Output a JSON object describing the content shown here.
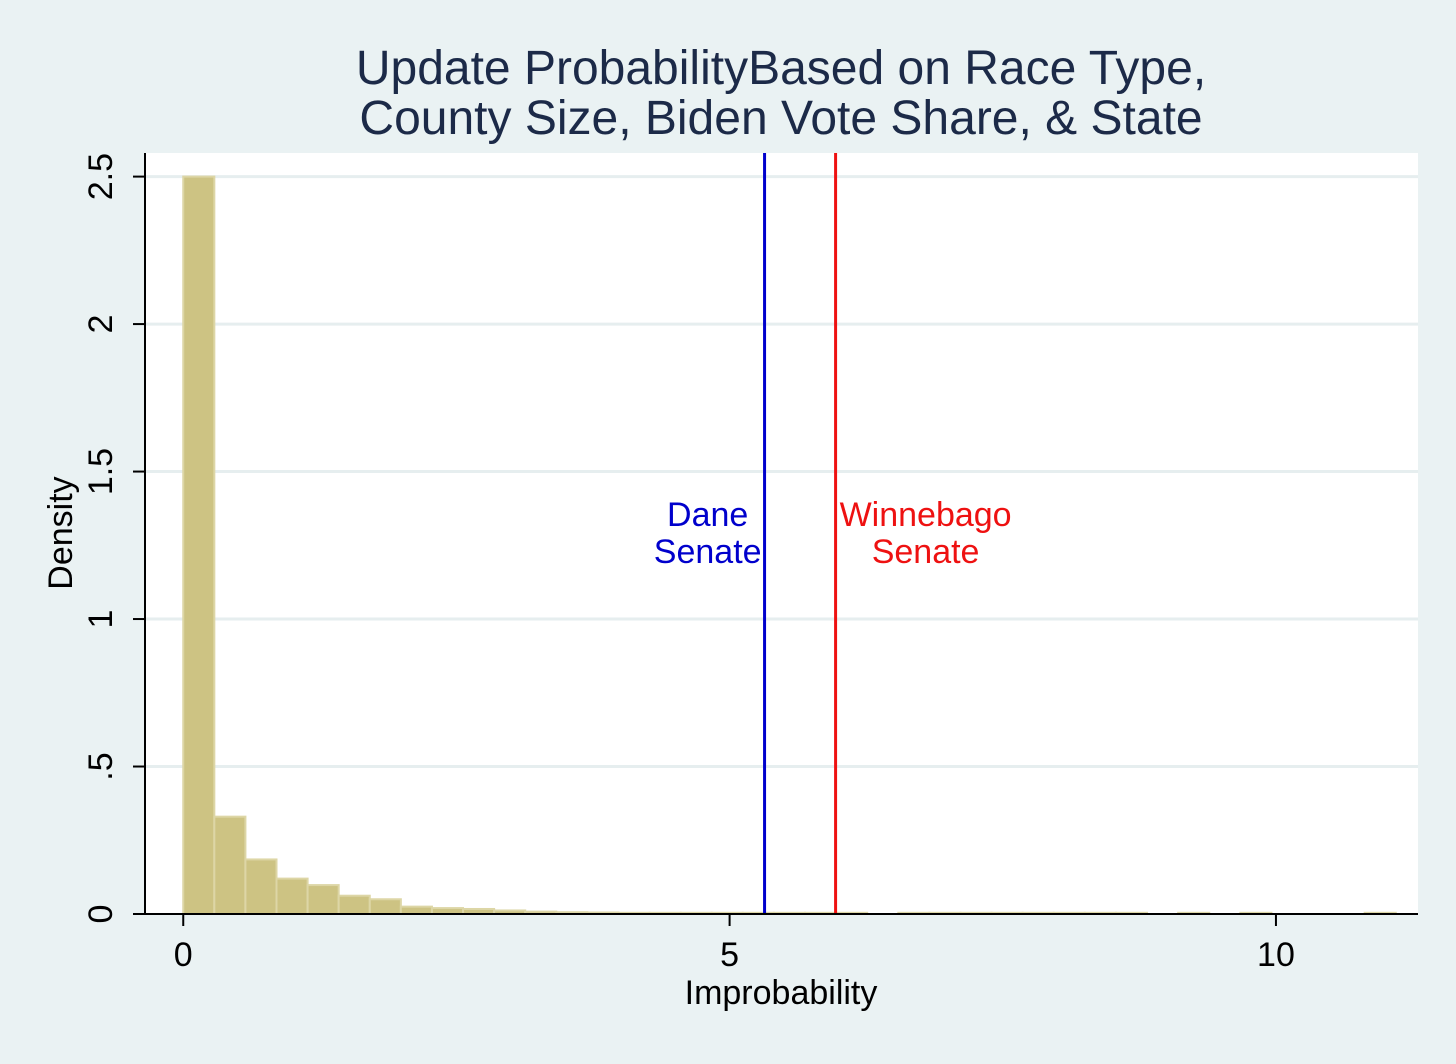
{
  "chart_data": {
    "type": "bar",
    "title_lines": [
      "Update ProbabilityBased on Race Type,",
      "County Size, Biden Vote Share, & State"
    ],
    "xlabel": "Improbability",
    "ylabel": "Density",
    "xlim": [
      -0.35,
      11.3
    ],
    "ylim": [
      0,
      2.58
    ],
    "x_ticks": [
      {
        "value": 0,
        "label": "0"
      },
      {
        "value": 5,
        "label": "5"
      },
      {
        "value": 10,
        "label": "10"
      }
    ],
    "y_ticks": [
      {
        "value": 0,
        "label": "0"
      },
      {
        "value": 0.5,
        "label": ".5"
      },
      {
        "value": 1,
        "label": "1"
      },
      {
        "value": 1.5,
        "label": "1.5"
      },
      {
        "value": 2,
        "label": "2"
      },
      {
        "value": 2.5,
        "label": "2.5"
      }
    ],
    "grid": true,
    "bin_width": 0.2845,
    "bins": [
      {
        "x0": 0.0,
        "density": 2.5
      },
      {
        "x0": 0.2845,
        "density": 0.33
      },
      {
        "x0": 0.569,
        "density": 0.185
      },
      {
        "x0": 0.8535,
        "density": 0.12
      },
      {
        "x0": 1.138,
        "density": 0.098
      },
      {
        "x0": 1.4225,
        "density": 0.062
      },
      {
        "x0": 1.707,
        "density": 0.05
      },
      {
        "x0": 1.9915,
        "density": 0.025
      },
      {
        "x0": 2.276,
        "density": 0.02
      },
      {
        "x0": 2.5605,
        "density": 0.017
      },
      {
        "x0": 2.845,
        "density": 0.012
      },
      {
        "x0": 3.1295,
        "density": 0.008
      },
      {
        "x0": 3.414,
        "density": 0.006
      },
      {
        "x0": 3.6985,
        "density": 0.005
      },
      {
        "x0": 3.983,
        "density": 0.004
      },
      {
        "x0": 4.2675,
        "density": 0.004
      },
      {
        "x0": 4.552,
        "density": 0.004
      },
      {
        "x0": 4.8365,
        "density": 0.004
      },
      {
        "x0": 5.121,
        "density": 0.004
      },
      {
        "x0": 5.4055,
        "density": 0.004
      },
      {
        "x0": 5.69,
        "density": 0.004
      },
      {
        "x0": 5.9745,
        "density": 0.004
      },
      {
        "x0": 6.544,
        "density": 0.004
      },
      {
        "x0": 6.8285,
        "density": 0.004
      },
      {
        "x0": 7.113,
        "density": 0.004
      },
      {
        "x0": 7.3975,
        "density": 0.004
      },
      {
        "x0": 7.682,
        "density": 0.004
      },
      {
        "x0": 7.9665,
        "density": 0.004
      },
      {
        "x0": 8.251,
        "density": 0.004
      },
      {
        "x0": 8.5355,
        "density": 0.004
      },
      {
        "x0": 9.105,
        "density": 0.004
      },
      {
        "x0": 9.674,
        "density": 0.004
      },
      {
        "x0": 10.812,
        "density": 0.004
      }
    ],
    "reference_lines": [
      {
        "name": "dane",
        "x": 5.32,
        "color": "#0000cc",
        "label_lines": [
          "Dane",
          "Senate"
        ],
        "label_side": "left"
      },
      {
        "name": "winnebago",
        "x": 5.97,
        "color": "#ee1111",
        "label_lines": [
          "Winnebago",
          "Senate"
        ],
        "label_side": "right"
      }
    ],
    "colors": {
      "background": "#eaf2f3",
      "plot_background": "#ffffff",
      "bar_fill": "#cdc383",
      "bar_stroke": "#ddd6a6",
      "grid": "#e6eeef",
      "title": "#1c2a48",
      "axis": "#000000"
    }
  }
}
